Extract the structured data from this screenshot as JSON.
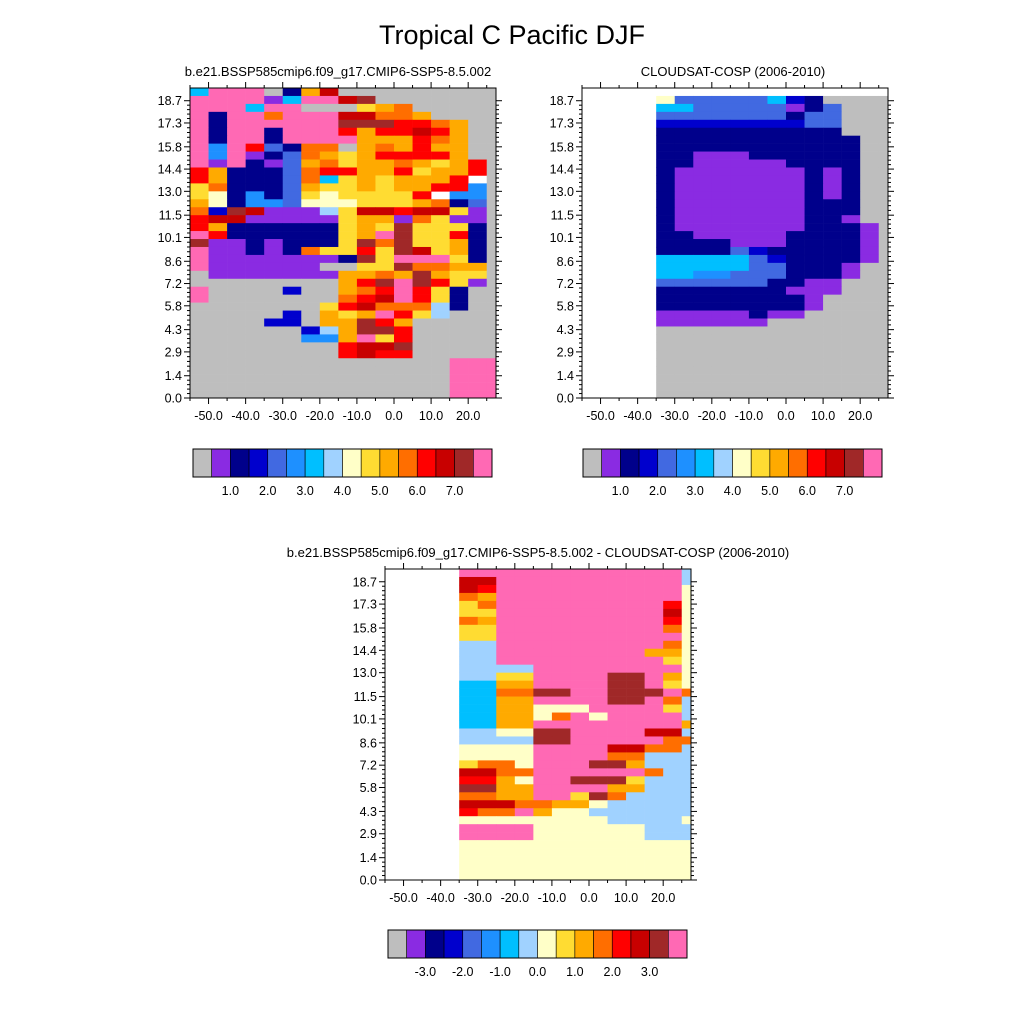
{
  "figure": {
    "title": "Tropical C Pacific DJF"
  },
  "palettes": {
    "levels": [
      "#bebebe",
      "#8a2be2",
      "#00008b",
      "#0000cd",
      "#4169e1",
      "#1e90ff",
      "#00bfff",
      "#a0d2ff",
      "#ffffc8",
      "#ffdc32",
      "#ffaa00",
      "#ff6e00",
      "#ff0000",
      "#c80000",
      "#a02828",
      "#ff69b4"
    ]
  },
  "chart_data": [
    {
      "type": "heatmap",
      "title": "b.e21.BSSP585cmip6.f09_g17.CMIP6-SSP5-8.5.002",
      "x_ticks": [
        "-50.0",
        "-40.0",
        "-30.0",
        "-20.0",
        "-10.0",
        "0.0",
        "10.0",
        "20.0"
      ],
      "y_ticks": [
        "0.0",
        "1.4",
        "2.9",
        "4.3",
        "5.8",
        "7.2",
        "8.6",
        "10.1",
        "11.5",
        "13.0",
        "14.4",
        "15.8",
        "17.3",
        "18.7"
      ],
      "xlim": [
        -55,
        27.5
      ],
      "ylim": [
        0,
        19.5
      ],
      "colorbar_labels": [
        "1.0",
        "2.0",
        "3.0",
        "4.0",
        "5.0",
        "6.0",
        "7.0"
      ],
      "grid": {
        "x0": -55,
        "dx": 5,
        "y0": 0,
        "dy": 0.5,
        "ncols": 18,
        "nrows": 40,
        "rows": [
          "8fff05900000000000",
          "6fff02ad000000000s",
          "ffff16ffde0000000s",
          "fff6ff0009ab00000s",
          "f2ffbfffddbba00000",
          "f2ffffffeeeccba000",
          "f2ff2fffcaccdca000",
          "f2ff2ffffaaacba000",
          "f5fc42bb0abacaa000",
          "f5f124ba9acccca000",
          "f1f214ab9aaba9ac00",
          "ca2224bccaac9aac00",
          "ca2224b69a9aaacs00",
          "9b2224a99a9aacc500",
          "982524989999cs5500",
          "a82554888999ab2400",
          "b3ed11179ddcdd9100",
          "cdd111119aa1b91100",
          "ca2222229a9e999200",
          "fc2222229afe99c200",
          "e11212229ebe99a200",
          "f11212b99c9ed9a200",
          "f11111112e9fff9200",
          "f1111110099ebbaa00",
          "01111111aabaea9900",
          "00000000acefec9100",
          "f0000300abcfc92000",
          "f0000000bcdfc92000",
          "00000009cdbbb72000",
          "0000030a9afc970000",
          "0000330aaeca000000",
          "00000037aeec000000",
          "00000055af9c000000",
          "00000000cdde000000",
          "00000000cdcc000000",
          "00000000000000ffff",
          "00000000000000ffff",
          "00000000000000ffff",
          "00000000000000ffff",
          "00000000000000ffff"
        ]
      }
    },
    {
      "type": "heatmap",
      "title": "CLOUDSAT-COSP (2006-2010)",
      "x_ticks": [
        "-50.0",
        "-40.0",
        "-30.0",
        "-20.0",
        "-10.0",
        "0.0",
        "10.0",
        "20.0"
      ],
      "y_ticks": [
        "0.0",
        "1.4",
        "2.9",
        "4.3",
        "5.8",
        "7.2",
        "8.6",
        "10.1",
        "11.5",
        "13.0",
        "14.4",
        "15.8",
        "17.3",
        "18.7"
      ],
      "xlim": [
        -55,
        27.5
      ],
      "ylim": [
        0,
        19.5
      ],
      "colorbar_labels": [
        "1.0",
        "2.0",
        "3.0",
        "4.0",
        "5.0",
        "6.0",
        "7.0"
      ],
      "grid": {
        "x0": -55,
        "dx": 5,
        "y0": 0,
        "dy": 0.5,
        "ncols": 18,
        "nrows": 40,
        "rows": [
          "zzzzzzzzzzzzzzzzzz",
          "zzzzzzzzzzzzzzzzzz",
          "zzzz8444446320000z",
          "zzzz66444441240000",
          "zzzz4444444244000z",
          "zzzz3333333344000z",
          "zzzz2222222222000z",
          "zzzz222222222220000",
          "zzzz22222222222000",
          "zzzz22111222222000",
          "zzzz22111112222000",
          "zzzz21111111212000",
          "zzzz21111111212000",
          "zzzz21111111212000",
          "zzzz21111111212000",
          "zzzz21111111222000",
          "zzzz21111111222000",
          "zzzz21111111221000",
          "zzzz21111111222100",
          "zzzz22111112222100",
          "zzzz22221112222100",
          "zzzz22224322222100",
          "zzzz66666432222100",
          "zzzz66666442221000",
          "zzzz66554442221000",
          "zzzz44444422110000",
          "zzzz22222221110000",
          "zzzz22222222100000",
          "zzzz22222222100000",
          "zzzz11111211000000",
          "zzzz11111100000000",
          "zzzz00000000000000",
          "zzzz00000000000000",
          "zzzz00000000000000",
          "zzzz00000000000000",
          "zzzz00000000000000",
          "zzzz00000000000000",
          "zzzz00000000000000",
          "zzzz00000000000000",
          "zzzz00000000000000"
        ]
      }
    },
    {
      "type": "heatmap",
      "title": "b.e21.BSSP585cmip6.f09_g17.CMIP6-SSP5-8.5.002 - CLOUDSAT-COSP (2006-2010)",
      "x_ticks": [
        "-50.0",
        "-40.0",
        "-30.0",
        "-20.0",
        "-10.0",
        "0.0",
        "10.0",
        "20.0"
      ],
      "y_ticks": [
        "0.0",
        "1.4",
        "2.9",
        "4.3",
        "5.8",
        "7.2",
        "8.6",
        "10.1",
        "11.5",
        "13.0",
        "14.4",
        "15.8",
        "17.3",
        "18.7"
      ],
      "xlim": [
        -55,
        27.5
      ],
      "ylim": [
        0,
        19.5
      ],
      "colorbar_labels": [
        "-3.0",
        "-2.0",
        "-1.0",
        "0.0",
        "1.0",
        "2.0",
        "3.0"
      ],
      "grid": {
        "x0": -55,
        "dx": 5,
        "y0": 0,
        "dy": 0.5,
        "ncols": 18,
        "nrows": 40,
        "rows": [
          "zzzzffffffffffff77",
          "zzzzffffffffffff77",
          "zzzzddffffffffff77",
          "zzzzdcffffffffff88",
          "zzzzbaffffffffff88",
          "zzzz9bfffffffffc88",
          "zzzz99fffffffffd88",
          "zzzzbafffffffffc88",
          "zzzz99fffffffffb88",
          "zzzz99ffffffffff88",
          "zzzz77fffffffffb88",
          "zzzz77ffffffffaa88",
          "zzzz77fffffffff988",
          "zzzz7777ffffffff88",
          "zzzz7799ffffeefa88",
          "zzzz66aaffffeef988",
          "zzzz66bbeeffeeefb88",
          "zzzz66aaffffeefb788",
          "zzzz66aa888ffff9788",
          "zzzz66aa8bf8ffff788",
          "zzzz66aaffffffffa788",
          "zzzz7788eeffffdd7788",
          "zzzz7777eefffffbb788",
          "zzzz8888ffffddbb7788",
          "zzzz8888ffffbb777788",
          "zzzz9bb8fffeea777788",
          "zzzzddbbffffffb77788",
          "zzzzcca8ffeee9777788",
          "zzzzeeaaffffaa777788",
          "zzzzbbaaff9eb7777788",
          "zzzzdddbbaa877777788",
          "zzzzcbbfa88777777788",
          "zzzz888888887777888888",
          "zzzzffff8888887777888",
          "zzzzffff888888777788",
          "zzzz8888888888888888",
          "zzzz8888888888888888",
          "zzzz8888888888888888",
          "zzzz8888888888888888",
          "zzzz8888888888888888"
        ]
      }
    }
  ]
}
